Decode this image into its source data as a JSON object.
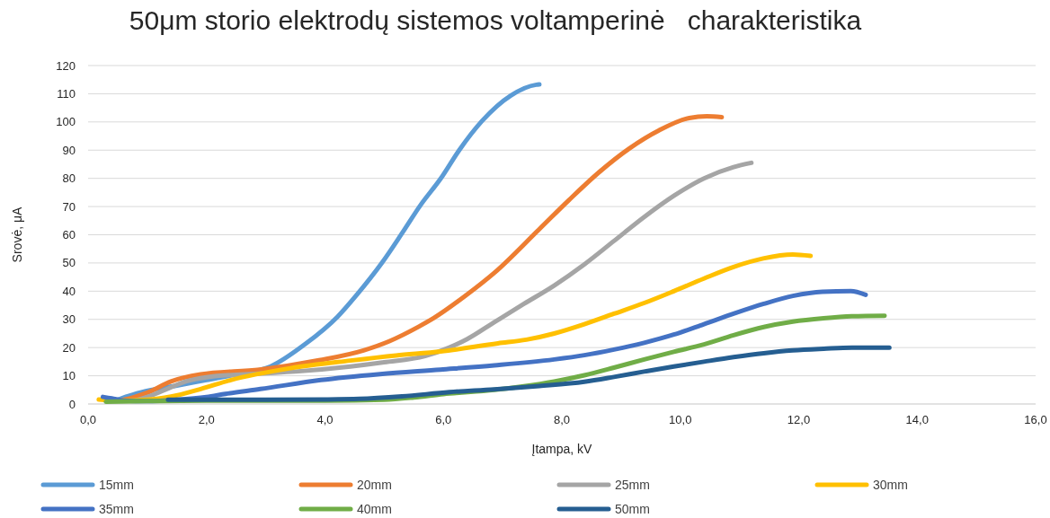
{
  "chart_data": {
    "type": "line",
    "title": "50μm storio elektrodų sistemos voltamperinė   charakteristika",
    "xlabel": "Įtampa, kV",
    "ylabel": "Srovė, μA",
    "xlim": [
      0,
      16
    ],
    "xticks": [
      {
        "value": 0,
        "label": "0,0"
      },
      {
        "value": 2,
        "label": "2,0"
      },
      {
        "value": 4,
        "label": "4,0"
      },
      {
        "value": 6,
        "label": "6,0"
      },
      {
        "value": 8,
        "label": "8,0"
      },
      {
        "value": 10,
        "label": "10,0"
      },
      {
        "value": 12,
        "label": "12,0"
      },
      {
        "value": 14,
        "label": "14,0"
      },
      {
        "value": 16,
        "label": "16,0"
      }
    ],
    "ylim": [
      0,
      120
    ],
    "yticks": [
      0,
      10,
      20,
      30,
      40,
      50,
      60,
      70,
      80,
      90,
      100,
      110,
      120
    ],
    "grid": "y",
    "legend": "bottom",
    "series": [
      {
        "name": "15mm",
        "color": "#5b9bd5",
        "x": [
          0.5,
          0.64,
          0.9,
          1.5,
          2.0,
          2.5,
          3.08,
          3.67,
          4.21,
          4.54,
          4.97,
          5.3,
          5.62,
          5.95,
          6.27,
          6.65,
          7.14,
          7.57,
          7.62
        ],
        "values": [
          1.5,
          2.6,
          4.2,
          6.5,
          8.5,
          10.5,
          13.3,
          21.3,
          30.9,
          38.8,
          50.3,
          60.5,
          70.7,
          79.8,
          90.1,
          100.3,
          109.4,
          113.2,
          113.3
        ]
      },
      {
        "name": "20mm",
        "color": "#ed7d31",
        "x": [
          0.55,
          0.8,
          1.0,
          1.4,
          1.9,
          2.9,
          3.9,
          4.65,
          5.09,
          5.59,
          5.84,
          6.38,
          6.86,
          7.62,
          8.12,
          8.63,
          9.14,
          9.64,
          10.15,
          10.45,
          10.7
        ],
        "values": [
          1.2,
          2.6,
          4,
          8,
          10.5,
          12.2,
          15.5,
          19,
          22.3,
          27.5,
          30.5,
          38.5,
          46.5,
          62,
          72.3,
          82.2,
          90.6,
          97,
          101.4,
          102,
          101.7
        ]
      },
      {
        "name": "25mm",
        "color": "#a5a5a5",
        "x": [
          0.8,
          1.0,
          1.3,
          1.65,
          2.0,
          2.91,
          3.5,
          4.43,
          5.0,
          5.69,
          6.1,
          6.4,
          6.86,
          7.36,
          7.87,
          8.38,
          8.88,
          9.39,
          9.89,
          10.4,
          10.9,
          11.2
        ],
        "values": [
          1.2,
          2.5,
          5,
          8,
          9.5,
          10.8,
          11.5,
          13.3,
          14.8,
          17,
          20,
          23,
          29,
          35.5,
          42,
          49.5,
          57.8,
          66.3,
          73.8,
          80,
          84,
          85.5
        ]
      },
      {
        "name": "30mm",
        "color": "#ffc000",
        "x": [
          0.18,
          0.5,
          1.0,
          1.4,
          1.9,
          2.41,
          3.42,
          4.43,
          5.2,
          5.95,
          6.92,
          7.4,
          7.87,
          8.38,
          8.88,
          9.39,
          9.89,
          10.4,
          10.9,
          11.4,
          11.9,
          12.2
        ],
        "values": [
          1.6,
          1.2,
          1.5,
          2.6,
          5.3,
          8.5,
          12.7,
          15.4,
          17.2,
          18.6,
          21.5,
          22.8,
          25,
          28.3,
          32,
          35.8,
          40,
          44.5,
          48.6,
          51.6,
          53,
          52.5
        ]
      },
      {
        "name": "35mm",
        "color": "#4472c4",
        "x": [
          0.25,
          0.4,
          0.6,
          1.0,
          1.5,
          2.0,
          2.32,
          2.91,
          3.93,
          4.93,
          5.95,
          6.86,
          7.87,
          8.38,
          8.88,
          9.39,
          9.89,
          10.4,
          10.9,
          11.41,
          11.9,
          12.4,
          12.88,
          13.13
        ],
        "values": [
          2.5,
          2,
          1.2,
          1,
          1.5,
          2.5,
          3.6,
          5.3,
          8.5,
          10.6,
          12.2,
          13.7,
          15.8,
          17.3,
          19.3,
          21.7,
          24.6,
          28.3,
          32,
          35.5,
          38.3,
          39.8,
          40,
          38.7
        ]
      },
      {
        "name": "40mm",
        "color": "#70ad47",
        "x": [
          0.3,
          1.0,
          2.0,
          3.0,
          4.0,
          5.0,
          5.5,
          6.0,
          6.86,
          7.36,
          7.87,
          8.38,
          8.88,
          9.39,
          9.89,
          10.4,
          10.9,
          11.41,
          11.9,
          12.42,
          12.9,
          13.45
        ],
        "values": [
          0.8,
          1,
          1.2,
          1.2,
          1.2,
          1.5,
          2.3,
          3.5,
          5,
          6.3,
          8,
          10.2,
          12.9,
          15.8,
          18.5,
          21.1,
          24.4,
          27.3,
          29.2,
          30.4,
          31.1,
          31.3
        ]
      },
      {
        "name": "50mm",
        "color": "#255e91",
        "x": [
          1.35,
          2.0,
          3.0,
          4.0,
          4.58,
          5.3,
          6.1,
          6.86,
          7.62,
          8.38,
          8.88,
          9.39,
          9.89,
          10.4,
          10.9,
          11.41,
          11.9,
          12.42,
          12.9,
          13.53
        ],
        "values": [
          1.5,
          1.5,
          1.5,
          1.6,
          1.8,
          2.7,
          4.2,
          5.2,
          6.4,
          7.9,
          9.6,
          11.5,
          13.3,
          15,
          16.6,
          18,
          19,
          19.6,
          20,
          20
        ]
      }
    ]
  }
}
